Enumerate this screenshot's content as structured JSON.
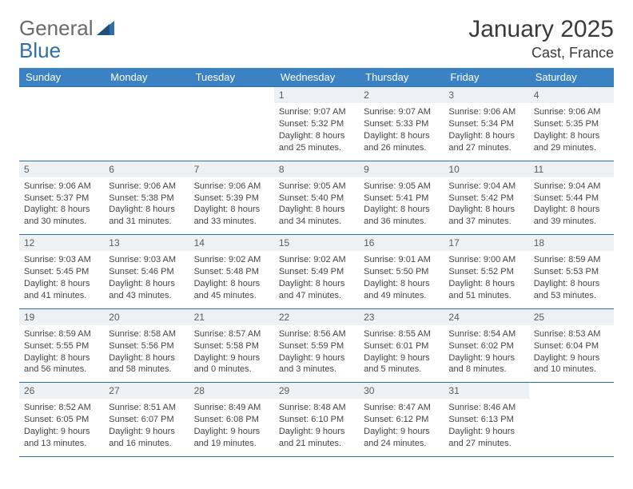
{
  "brand": {
    "part1": "General",
    "part2": "Blue"
  },
  "title": "January 2025",
  "location": "Cast, France",
  "colors": {
    "header_bg": "#3b82c4",
    "header_text": "#ffffff",
    "row_border": "#2f6fa8",
    "daynum_bg": "#eef1f4",
    "text": "#444444",
    "logo_gray": "#6a6a6a",
    "logo_blue": "#2f6fa8"
  },
  "weekdays": [
    "Sunday",
    "Monday",
    "Tuesday",
    "Wednesday",
    "Thursday",
    "Friday",
    "Saturday"
  ],
  "weeks": [
    [
      {
        "day": "",
        "sunrise": "",
        "sunset": "",
        "dl1": "",
        "dl2": ""
      },
      {
        "day": "",
        "sunrise": "",
        "sunset": "",
        "dl1": "",
        "dl2": ""
      },
      {
        "day": "",
        "sunrise": "",
        "sunset": "",
        "dl1": "",
        "dl2": ""
      },
      {
        "day": "1",
        "sunrise": "Sunrise: 9:07 AM",
        "sunset": "Sunset: 5:32 PM",
        "dl1": "Daylight: 8 hours",
        "dl2": "and 25 minutes."
      },
      {
        "day": "2",
        "sunrise": "Sunrise: 9:07 AM",
        "sunset": "Sunset: 5:33 PM",
        "dl1": "Daylight: 8 hours",
        "dl2": "and 26 minutes."
      },
      {
        "day": "3",
        "sunrise": "Sunrise: 9:06 AM",
        "sunset": "Sunset: 5:34 PM",
        "dl1": "Daylight: 8 hours",
        "dl2": "and 27 minutes."
      },
      {
        "day": "4",
        "sunrise": "Sunrise: 9:06 AM",
        "sunset": "Sunset: 5:35 PM",
        "dl1": "Daylight: 8 hours",
        "dl2": "and 29 minutes."
      }
    ],
    [
      {
        "day": "5",
        "sunrise": "Sunrise: 9:06 AM",
        "sunset": "Sunset: 5:37 PM",
        "dl1": "Daylight: 8 hours",
        "dl2": "and 30 minutes."
      },
      {
        "day": "6",
        "sunrise": "Sunrise: 9:06 AM",
        "sunset": "Sunset: 5:38 PM",
        "dl1": "Daylight: 8 hours",
        "dl2": "and 31 minutes."
      },
      {
        "day": "7",
        "sunrise": "Sunrise: 9:06 AM",
        "sunset": "Sunset: 5:39 PM",
        "dl1": "Daylight: 8 hours",
        "dl2": "and 33 minutes."
      },
      {
        "day": "8",
        "sunrise": "Sunrise: 9:05 AM",
        "sunset": "Sunset: 5:40 PM",
        "dl1": "Daylight: 8 hours",
        "dl2": "and 34 minutes."
      },
      {
        "day": "9",
        "sunrise": "Sunrise: 9:05 AM",
        "sunset": "Sunset: 5:41 PM",
        "dl1": "Daylight: 8 hours",
        "dl2": "and 36 minutes."
      },
      {
        "day": "10",
        "sunrise": "Sunrise: 9:04 AM",
        "sunset": "Sunset: 5:42 PM",
        "dl1": "Daylight: 8 hours",
        "dl2": "and 37 minutes."
      },
      {
        "day": "11",
        "sunrise": "Sunrise: 9:04 AM",
        "sunset": "Sunset: 5:44 PM",
        "dl1": "Daylight: 8 hours",
        "dl2": "and 39 minutes."
      }
    ],
    [
      {
        "day": "12",
        "sunrise": "Sunrise: 9:03 AM",
        "sunset": "Sunset: 5:45 PM",
        "dl1": "Daylight: 8 hours",
        "dl2": "and 41 minutes."
      },
      {
        "day": "13",
        "sunrise": "Sunrise: 9:03 AM",
        "sunset": "Sunset: 5:46 PM",
        "dl1": "Daylight: 8 hours",
        "dl2": "and 43 minutes."
      },
      {
        "day": "14",
        "sunrise": "Sunrise: 9:02 AM",
        "sunset": "Sunset: 5:48 PM",
        "dl1": "Daylight: 8 hours",
        "dl2": "and 45 minutes."
      },
      {
        "day": "15",
        "sunrise": "Sunrise: 9:02 AM",
        "sunset": "Sunset: 5:49 PM",
        "dl1": "Daylight: 8 hours",
        "dl2": "and 47 minutes."
      },
      {
        "day": "16",
        "sunrise": "Sunrise: 9:01 AM",
        "sunset": "Sunset: 5:50 PM",
        "dl1": "Daylight: 8 hours",
        "dl2": "and 49 minutes."
      },
      {
        "day": "17",
        "sunrise": "Sunrise: 9:00 AM",
        "sunset": "Sunset: 5:52 PM",
        "dl1": "Daylight: 8 hours",
        "dl2": "and 51 minutes."
      },
      {
        "day": "18",
        "sunrise": "Sunrise: 8:59 AM",
        "sunset": "Sunset: 5:53 PM",
        "dl1": "Daylight: 8 hours",
        "dl2": "and 53 minutes."
      }
    ],
    [
      {
        "day": "19",
        "sunrise": "Sunrise: 8:59 AM",
        "sunset": "Sunset: 5:55 PM",
        "dl1": "Daylight: 8 hours",
        "dl2": "and 56 minutes."
      },
      {
        "day": "20",
        "sunrise": "Sunrise: 8:58 AM",
        "sunset": "Sunset: 5:56 PM",
        "dl1": "Daylight: 8 hours",
        "dl2": "and 58 minutes."
      },
      {
        "day": "21",
        "sunrise": "Sunrise: 8:57 AM",
        "sunset": "Sunset: 5:58 PM",
        "dl1": "Daylight: 9 hours",
        "dl2": "and 0 minutes."
      },
      {
        "day": "22",
        "sunrise": "Sunrise: 8:56 AM",
        "sunset": "Sunset: 5:59 PM",
        "dl1": "Daylight: 9 hours",
        "dl2": "and 3 minutes."
      },
      {
        "day": "23",
        "sunrise": "Sunrise: 8:55 AM",
        "sunset": "Sunset: 6:01 PM",
        "dl1": "Daylight: 9 hours",
        "dl2": "and 5 minutes."
      },
      {
        "day": "24",
        "sunrise": "Sunrise: 8:54 AM",
        "sunset": "Sunset: 6:02 PM",
        "dl1": "Daylight: 9 hours",
        "dl2": "and 8 minutes."
      },
      {
        "day": "25",
        "sunrise": "Sunrise: 8:53 AM",
        "sunset": "Sunset: 6:04 PM",
        "dl1": "Daylight: 9 hours",
        "dl2": "and 10 minutes."
      }
    ],
    [
      {
        "day": "26",
        "sunrise": "Sunrise: 8:52 AM",
        "sunset": "Sunset: 6:05 PM",
        "dl1": "Daylight: 9 hours",
        "dl2": "and 13 minutes."
      },
      {
        "day": "27",
        "sunrise": "Sunrise: 8:51 AM",
        "sunset": "Sunset: 6:07 PM",
        "dl1": "Daylight: 9 hours",
        "dl2": "and 16 minutes."
      },
      {
        "day": "28",
        "sunrise": "Sunrise: 8:49 AM",
        "sunset": "Sunset: 6:08 PM",
        "dl1": "Daylight: 9 hours",
        "dl2": "and 19 minutes."
      },
      {
        "day": "29",
        "sunrise": "Sunrise: 8:48 AM",
        "sunset": "Sunset: 6:10 PM",
        "dl1": "Daylight: 9 hours",
        "dl2": "and 21 minutes."
      },
      {
        "day": "30",
        "sunrise": "Sunrise: 8:47 AM",
        "sunset": "Sunset: 6:12 PM",
        "dl1": "Daylight: 9 hours",
        "dl2": "and 24 minutes."
      },
      {
        "day": "31",
        "sunrise": "Sunrise: 8:46 AM",
        "sunset": "Sunset: 6:13 PM",
        "dl1": "Daylight: 9 hours",
        "dl2": "and 27 minutes."
      },
      {
        "day": "",
        "sunrise": "",
        "sunset": "",
        "dl1": "",
        "dl2": ""
      }
    ]
  ]
}
